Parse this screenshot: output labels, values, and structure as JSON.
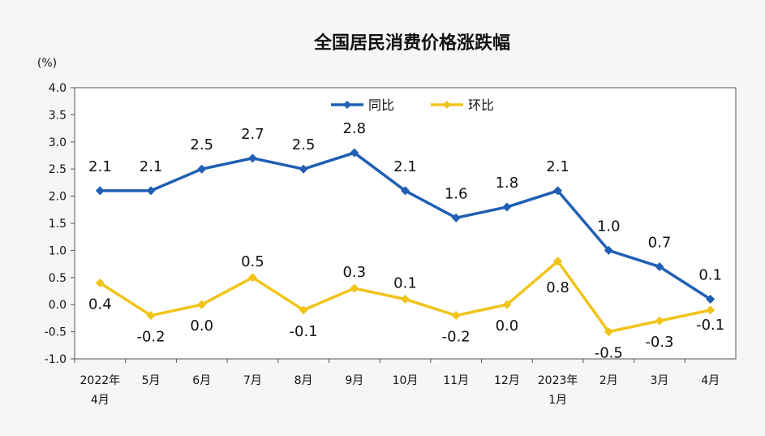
{
  "chart_data": {
    "type": "line",
    "title": "全国居民消费价格涨跌幅",
    "unit": "(%)",
    "categories": [
      [
        "2022年",
        "4月"
      ],
      [
        "5月"
      ],
      [
        "6月"
      ],
      [
        "7月"
      ],
      [
        "8月"
      ],
      [
        "9月"
      ],
      [
        "10月"
      ],
      [
        "11月"
      ],
      [
        "12月"
      ],
      [
        "2023年",
        "1月"
      ],
      [
        "2月"
      ],
      [
        "3月"
      ],
      [
        "4月"
      ]
    ],
    "ylim": [
      -1.0,
      4.0
    ],
    "yticks": [
      "4.0",
      "3.5",
      "3.0",
      "2.5",
      "2.0",
      "1.5",
      "1.0",
      "0.5",
      "0.0",
      "-0.5",
      "-1.0"
    ],
    "grid": false,
    "legend_position": "top-center",
    "series": [
      {
        "name": "同比",
        "color": "#1f5fb4",
        "values": [
          2.1,
          2.1,
          2.5,
          2.7,
          2.5,
          2.8,
          2.1,
          1.6,
          1.8,
          2.1,
          1.0,
          0.7,
          0.1
        ],
        "labels": [
          "2.1",
          "2.1",
          "2.5",
          "2.7",
          "2.5",
          "2.8",
          "2.1",
          "1.6",
          "1.8",
          "2.1",
          "1.0",
          "0.7",
          "0.1"
        ]
      },
      {
        "name": "环比",
        "color": "#f1c419",
        "values": [
          0.4,
          -0.2,
          0.0,
          0.5,
          -0.1,
          0.3,
          0.1,
          -0.2,
          0.0,
          0.8,
          -0.5,
          -0.3,
          -0.1
        ],
        "labels": [
          "0.4",
          "-0.2",
          "0.0",
          "0.5",
          "-0.1",
          "0.3",
          "0.1",
          "-0.2",
          "0.0",
          "0.8",
          "-0.5",
          "-0.3",
          "-0.1"
        ]
      }
    ]
  }
}
